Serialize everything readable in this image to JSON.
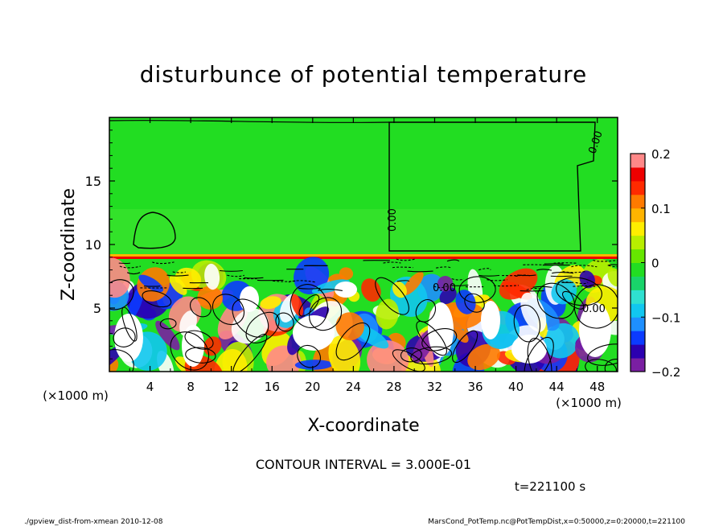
{
  "chart_data": {
    "type": "heatmap",
    "title": "disturbunce of potential temperature",
    "xlabel": "X-coordinate",
    "ylabel": "Z-coordinate",
    "x_unit": "(×1000 m)",
    "y_unit": "(×1000 m)",
    "xlim": [
      0,
      50
    ],
    "ylim": [
      0,
      20
    ],
    "x_ticks": [
      "4",
      "8",
      "12",
      "16",
      "20",
      "24",
      "28",
      "32",
      "36",
      "40",
      "44",
      "48"
    ],
    "y_ticks": [
      "5",
      "10",
      "15"
    ],
    "colorbar": {
      "range": [
        -0.2,
        0.2
      ],
      "tick_labels": [
        "0.2",
        "0.1",
        "0",
        "−0.1",
        "−0.2"
      ],
      "colors": [
        "#7a1fa2",
        "#2b00b0",
        "#0b3bff",
        "#1e8fff",
        "#11c7f0",
        "#2fe0d0",
        "#19d46a",
        "#22dd22",
        "#66e600",
        "#b8ee00",
        "#ffee00",
        "#ffb400",
        "#ff7a00",
        "#ff2a00",
        "#ee0000",
        "#ff8888"
      ]
    },
    "contour_labels": [
      "0.00",
      "0.00",
      "0.00",
      "0.00"
    ],
    "contour_interval_text": "CONTOUR INTERVAL = 3.000E-01",
    "time_text": "t=221100 s",
    "footer_left": "./gpview_dist-from-xmean  2010-12-08",
    "footer_right": "MarsCond_PotTemp.nc@PotTempDist,x=0:50000,z=0:20000,t=221100"
  }
}
